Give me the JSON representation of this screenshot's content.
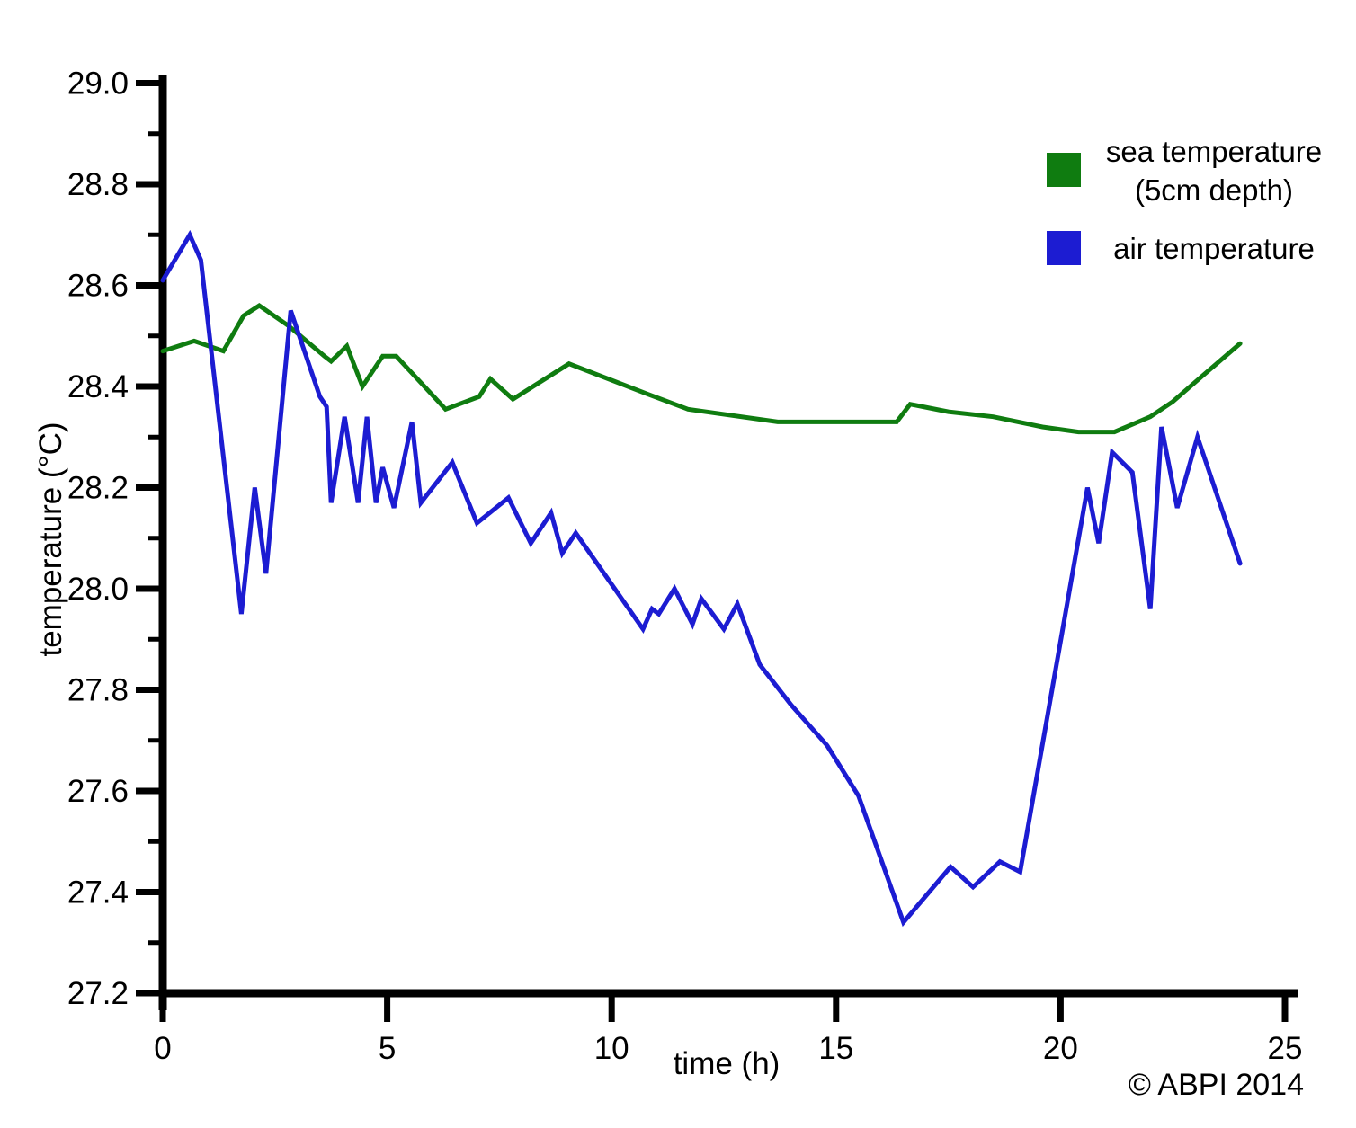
{
  "chart_data": {
    "type": "line",
    "title": "",
    "xlabel": "time (h)",
    "ylabel": "temperature (°C)",
    "xlim": [
      0,
      25
    ],
    "ylim": [
      27.2,
      29.0
    ],
    "grid": false,
    "legend_position": "top-right",
    "x_major_ticks": [
      0,
      5,
      10,
      15,
      20,
      25
    ],
    "x_tick_labels": [
      "0",
      "5",
      "10",
      "15",
      "20",
      "25"
    ],
    "y_major_ticks": [
      29.0,
      28.8,
      28.6,
      28.4,
      28.2,
      28.0,
      27.8,
      27.6,
      27.4,
      27.2
    ],
    "y_tick_labels": [
      "29.0",
      "28.8",
      "28.6",
      "28.4",
      "28.2",
      "28.0",
      "27.8",
      "27.6",
      "27.4",
      "27.2"
    ],
    "y_minor_step": 0.1,
    "series": [
      {
        "name": "sea temperature (5cm depth)",
        "legend_lines": [
          "sea temperature",
          "(5cm depth)"
        ],
        "color": "#0f7c10",
        "points": [
          [
            0,
            28.47
          ],
          [
            0.7,
            28.49
          ],
          [
            1.35,
            28.47
          ],
          [
            1.8,
            28.54
          ],
          [
            2.15,
            28.56
          ],
          [
            2.8,
            28.52
          ],
          [
            3.6,
            28.46
          ],
          [
            3.75,
            28.45
          ],
          [
            4.1,
            28.48
          ],
          [
            4.45,
            28.4
          ],
          [
            4.9,
            28.46
          ],
          [
            5.2,
            28.46
          ],
          [
            6.3,
            28.355
          ],
          [
            7.05,
            28.38
          ],
          [
            7.3,
            28.415
          ],
          [
            7.8,
            28.375
          ],
          [
            9.05,
            28.445
          ],
          [
            10.8,
            28.385
          ],
          [
            11.7,
            28.355
          ],
          [
            13.7,
            28.33
          ],
          [
            16.35,
            28.33
          ],
          [
            16.65,
            28.365
          ],
          [
            17.5,
            28.35
          ],
          [
            18.5,
            28.34
          ],
          [
            19.6,
            28.32
          ],
          [
            20.4,
            28.31
          ],
          [
            21.2,
            28.31
          ],
          [
            22.0,
            28.34
          ],
          [
            22.5,
            28.37
          ],
          [
            23.15,
            28.42
          ],
          [
            24.0,
            28.485
          ]
        ]
      },
      {
        "name": "air temperature",
        "legend_lines": [
          "air temperature"
        ],
        "color": "#1c1cd2",
        "points": [
          [
            0,
            28.61
          ],
          [
            0.6,
            28.7
          ],
          [
            0.85,
            28.65
          ],
          [
            1.75,
            27.95
          ],
          [
            2.05,
            28.2
          ],
          [
            2.3,
            28.03
          ],
          [
            2.85,
            28.55
          ],
          [
            3.5,
            28.38
          ],
          [
            3.65,
            28.36
          ],
          [
            3.75,
            28.17
          ],
          [
            4.05,
            28.34
          ],
          [
            4.35,
            28.17
          ],
          [
            4.55,
            28.34
          ],
          [
            4.75,
            28.17
          ],
          [
            4.9,
            28.24
          ],
          [
            5.15,
            28.16
          ],
          [
            5.55,
            28.33
          ],
          [
            5.75,
            28.17
          ],
          [
            6.45,
            28.25
          ],
          [
            7.0,
            28.13
          ],
          [
            7.7,
            28.18
          ],
          [
            8.2,
            28.09
          ],
          [
            8.65,
            28.15
          ],
          [
            8.9,
            28.07
          ],
          [
            9.2,
            28.11
          ],
          [
            10.7,
            27.92
          ],
          [
            10.9,
            27.96
          ],
          [
            11.05,
            27.95
          ],
          [
            11.4,
            28.0
          ],
          [
            11.8,
            27.93
          ],
          [
            12.0,
            27.98
          ],
          [
            12.5,
            27.92
          ],
          [
            12.8,
            27.97
          ],
          [
            13.3,
            27.85
          ],
          [
            14.0,
            27.77
          ],
          [
            14.8,
            27.69
          ],
          [
            15.5,
            27.59
          ],
          [
            16.5,
            27.34
          ],
          [
            17.55,
            27.45
          ],
          [
            18.05,
            27.41
          ],
          [
            18.65,
            27.46
          ],
          [
            19.1,
            27.44
          ],
          [
            20.6,
            28.2
          ],
          [
            20.85,
            28.09
          ],
          [
            21.15,
            28.27
          ],
          [
            21.6,
            28.23
          ],
          [
            22.0,
            27.96
          ],
          [
            22.25,
            28.32
          ],
          [
            22.6,
            28.16
          ],
          [
            23.05,
            28.3
          ],
          [
            24.0,
            28.05
          ]
        ]
      }
    ]
  },
  "footer": {
    "copyright": "© ABPI 2014"
  }
}
